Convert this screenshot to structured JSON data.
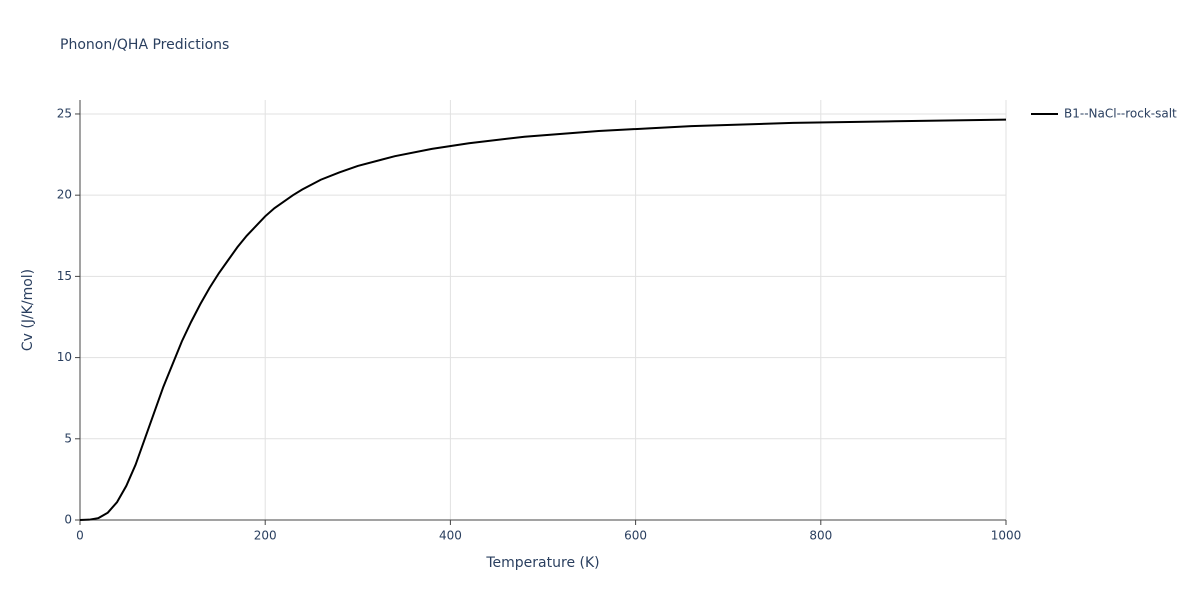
{
  "chart_data": {
    "type": "line",
    "title": "Phonon/QHA Predictions",
    "x_label": "Temperature (K)",
    "y_label": "Cv (J/K/mol)",
    "x": [
      0,
      10,
      20,
      30,
      40,
      50,
      60,
      70,
      80,
      90,
      100,
      110,
      120,
      130,
      140,
      150,
      160,
      170,
      180,
      190,
      200,
      210,
      220,
      230,
      240,
      260,
      280,
      300,
      340,
      380,
      420,
      480,
      560,
      660,
      770,
      880,
      1000
    ],
    "series": [
      {
        "name": "B1--NaCl--rock-salt",
        "color": "#000000",
        "values": [
          0,
          0.02,
          0.12,
          0.45,
          1.1,
          2.1,
          3.4,
          5.0,
          6.6,
          8.2,
          9.6,
          11.0,
          12.2,
          13.3,
          14.3,
          15.2,
          16.0,
          16.8,
          17.5,
          18.1,
          18.7,
          19.2,
          19.6,
          20.0,
          20.35,
          20.95,
          21.4,
          21.8,
          22.4,
          22.85,
          23.2,
          23.6,
          23.95,
          24.25,
          24.45,
          24.55,
          24.65
        ]
      }
    ],
    "xlim": [
      0,
      1000
    ],
    "xticks": [
      0,
      200,
      400,
      600,
      800,
      1000
    ],
    "ylim": [
      0,
      25.86
    ],
    "yticks": [
      0,
      5,
      10,
      15,
      20,
      25
    ],
    "grid": true,
    "legend": "right"
  }
}
